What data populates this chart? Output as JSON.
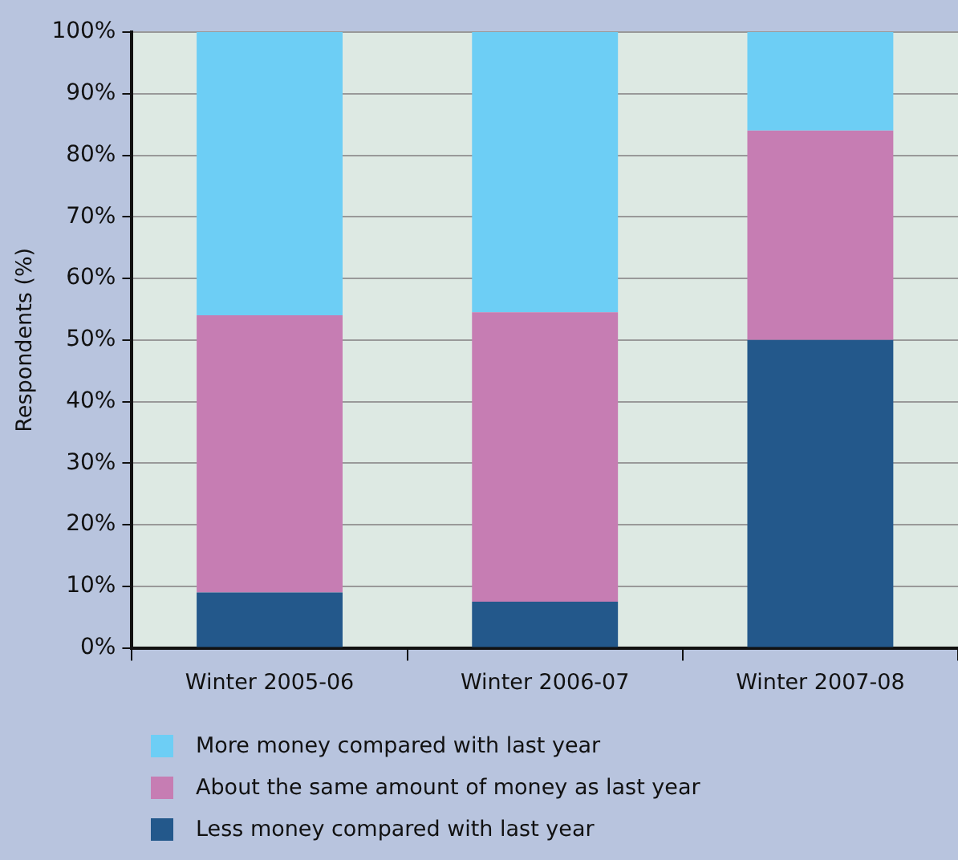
{
  "chart_data": {
    "type": "bar",
    "stacked": true,
    "ylabel": "Respondents (%)",
    "categories": [
      "Winter 2005-06",
      "Winter 2006-07",
      "Winter 2007-08"
    ],
    "series": [
      {
        "name": "Less money compared with last year",
        "color": "#23588b",
        "values": [
          9,
          7.5,
          50
        ]
      },
      {
        "name": "About the same amount of money as last year",
        "color": "#c67db3",
        "values": [
          45,
          47,
          34
        ]
      },
      {
        "name": "More money compared with last year",
        "color": "#6dcef5",
        "values": [
          46,
          45.5,
          16
        ]
      }
    ],
    "ylim": [
      0,
      100
    ],
    "yticks": [
      {
        "value": 0,
        "label": "0%"
      },
      {
        "value": 10,
        "label": "10%"
      },
      {
        "value": 20,
        "label": "20%"
      },
      {
        "value": 30,
        "label": "30%"
      },
      {
        "value": 40,
        "label": "40%"
      },
      {
        "value": 50,
        "label": "50%"
      },
      {
        "value": 60,
        "label": "60%"
      },
      {
        "value": 70,
        "label": "70%"
      },
      {
        "value": 80,
        "label": "80%"
      },
      {
        "value": 90,
        "label": "90%"
      },
      {
        "value": 100,
        "label": "100%"
      }
    ],
    "grid": "y",
    "legend": "bottom"
  }
}
